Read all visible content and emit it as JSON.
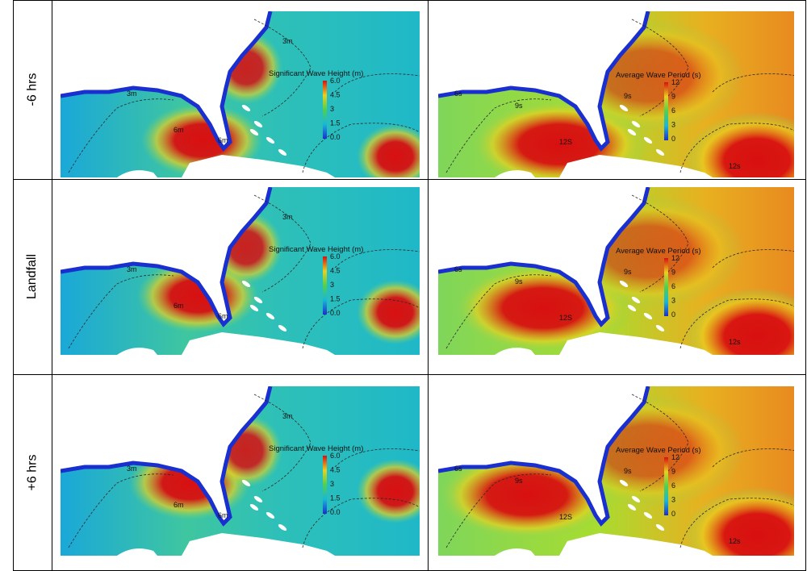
{
  "rows": [
    {
      "label": "-6 hrs"
    },
    {
      "label": "Landfall"
    },
    {
      "label": "+6 hrs"
    }
  ],
  "wave_height": {
    "title": "Significant Wave Height (m)",
    "ticks": [
      "6.0",
      "4.5",
      "3",
      "1.5",
      "0.0"
    ],
    "contour_labels": {
      "row0": [
        "3m",
        "3m",
        "6m",
        "6m"
      ],
      "row1": [
        "3m",
        "3m",
        "6m",
        "6m"
      ],
      "row2": [
        "3m",
        "3m",
        "6m",
        "6m"
      ]
    }
  },
  "wave_period": {
    "title": "Average Wave Period (s)",
    "ticks": [
      "12",
      "9",
      "6",
      "3",
      "0"
    ],
    "contour_labels": {
      "row0": [
        "6s",
        "9s",
        "9s",
        "12S",
        "12s"
      ],
      "row1": [
        "6s",
        "9s",
        "9s",
        "12S",
        "12s"
      ],
      "row2": [
        "6s",
        "9s",
        "9s",
        "12S",
        "12s"
      ]
    }
  },
  "colors": {
    "land": "#ffffff",
    "coast": "#1a2fd0",
    "low": "#1aa8d8",
    "mid": "#7fd65a",
    "high": "#e8d020",
    "peak": "#d81010"
  }
}
